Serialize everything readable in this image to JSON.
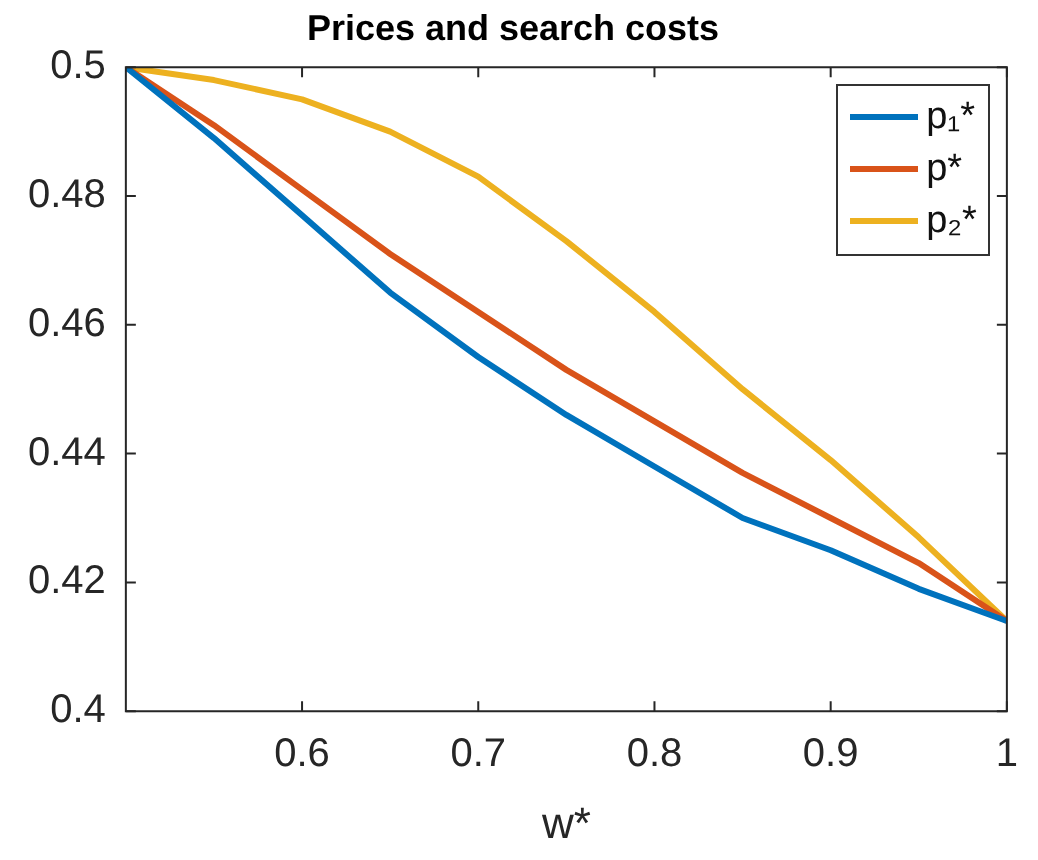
{
  "chart_data": {
    "type": "line",
    "title": "Prices and search costs",
    "xlabel": "w*",
    "x": [
      0.5,
      0.55,
      0.6,
      0.65,
      0.7,
      0.75,
      0.8,
      0.85,
      0.9,
      0.95,
      1
    ],
    "series": [
      {
        "name": "p₁*",
        "color": "#0072bd",
        "values": [
          0.5,
          0.489,
          0.477,
          0.465,
          0.455,
          0.446,
          0.438,
          0.43,
          0.425,
          0.419,
          0.414
        ]
      },
      {
        "name": "p*",
        "color": "#d95319",
        "values": [
          0.5,
          0.491,
          0.481,
          0.471,
          0.462,
          0.453,
          0.445,
          0.437,
          0.43,
          0.423,
          0.414
        ]
      },
      {
        "name": "p₂*",
        "color": "#edb120",
        "values": [
          0.5,
          0.498,
          0.495,
          0.49,
          0.483,
          0.473,
          0.462,
          0.45,
          0.439,
          0.427,
          0.414
        ]
      }
    ],
    "xlim": [
      0.5,
      1
    ],
    "xticks": [
      0.6,
      0.7,
      0.8,
      0.9,
      1
    ],
    "ylim": [
      0.4,
      0.5
    ],
    "yticks": [
      0.4,
      0.42,
      0.44,
      0.46,
      0.48,
      0.5
    ],
    "legend": "top right",
    "marker": "none"
  }
}
